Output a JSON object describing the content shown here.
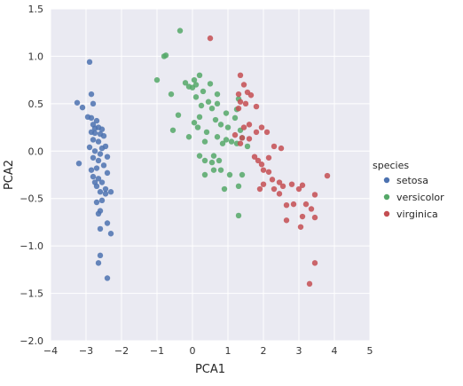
{
  "chart_data": {
    "type": "scatter",
    "title": "",
    "xlabel": "PCA1",
    "ylabel": "PCA2",
    "xlim": [
      -4,
      5
    ],
    "ylim": [
      -2.0,
      1.5
    ],
    "xticks": [
      -4,
      -3,
      -2,
      -1,
      0,
      1,
      2,
      3,
      4,
      5
    ],
    "xtick_labels": [
      "−4",
      "−3",
      "−2",
      "−1",
      "0",
      "1",
      "2",
      "3",
      "4",
      "5"
    ],
    "yticks": [
      -2.0,
      -1.5,
      -1.0,
      -0.5,
      0.0,
      0.5,
      1.0,
      1.5
    ],
    "ytick_labels": [
      "−2.0",
      "−1.5",
      "−1.0",
      "−0.5",
      "0.0",
      "0.5",
      "1.0",
      "1.5"
    ],
    "grid": true,
    "background": "#EAEAF2",
    "legend": {
      "title": "species",
      "placement": "right"
    },
    "series": [
      {
        "name": "setosa",
        "color": "#4C72B0",
        "points": [
          [
            -2.9,
            0.94
          ],
          [
            -3.25,
            0.51
          ],
          [
            -3.1,
            0.46
          ],
          [
            -2.85,
            0.6
          ],
          [
            -2.8,
            0.5
          ],
          [
            -2.95,
            0.36
          ],
          [
            -2.85,
            0.35
          ],
          [
            -2.7,
            0.32
          ],
          [
            -2.8,
            0.28
          ],
          [
            -2.75,
            0.24
          ],
          [
            -2.65,
            0.25
          ],
          [
            -2.55,
            0.23
          ],
          [
            -2.85,
            0.2
          ],
          [
            -2.75,
            0.19
          ],
          [
            -2.6,
            0.18
          ],
          [
            -2.5,
            0.16
          ],
          [
            -2.8,
            0.12
          ],
          [
            -2.65,
            0.1
          ],
          [
            -2.9,
            0.04
          ],
          [
            -2.55,
            0.03
          ],
          [
            -2.45,
            0.05
          ],
          [
            -2.75,
            0.0
          ],
          [
            -2.6,
            -0.03
          ],
          [
            -2.4,
            -0.06
          ],
          [
            -2.8,
            -0.07
          ],
          [
            -2.65,
            -0.1
          ],
          [
            -3.2,
            -0.13
          ],
          [
            -2.5,
            -0.15
          ],
          [
            -2.85,
            -0.2
          ],
          [
            -2.7,
            -0.18
          ],
          [
            -2.4,
            -0.23
          ],
          [
            -2.8,
            -0.27
          ],
          [
            -2.65,
            -0.29
          ],
          [
            -2.55,
            -0.33
          ],
          [
            -2.75,
            -0.33
          ],
          [
            -2.7,
            -0.37
          ],
          [
            -2.45,
            -0.4
          ],
          [
            -2.3,
            -0.43
          ],
          [
            -2.6,
            -0.43
          ],
          [
            -2.45,
            -0.45
          ],
          [
            -2.55,
            -0.52
          ],
          [
            -2.7,
            -0.54
          ],
          [
            -2.6,
            -0.63
          ],
          [
            -2.65,
            -0.66
          ],
          [
            -2.4,
            -0.76
          ],
          [
            -2.6,
            -0.82
          ],
          [
            -2.3,
            -0.87
          ],
          [
            -2.6,
            -1.1
          ],
          [
            -2.65,
            -1.18
          ],
          [
            -2.4,
            -1.34
          ]
        ]
      },
      {
        "name": "versicolor",
        "color": "#55A868",
        "points": [
          [
            -0.35,
            1.27
          ],
          [
            -0.8,
            1.0
          ],
          [
            -0.75,
            1.01
          ],
          [
            -1.0,
            0.75
          ],
          [
            -0.6,
            0.6
          ],
          [
            -0.2,
            0.72
          ],
          [
            0.1,
            0.7
          ],
          [
            0.0,
            0.67
          ],
          [
            -0.1,
            0.68
          ],
          [
            0.2,
            0.8
          ],
          [
            0.05,
            0.75
          ],
          [
            0.3,
            0.63
          ],
          [
            0.5,
            0.71
          ],
          [
            0.1,
            0.57
          ],
          [
            0.25,
            0.48
          ],
          [
            0.45,
            0.52
          ],
          [
            0.55,
            0.45
          ],
          [
            0.2,
            0.36
          ],
          [
            -0.4,
            0.38
          ],
          [
            0.7,
            0.6
          ],
          [
            0.7,
            0.5
          ],
          [
            0.65,
            0.33
          ],
          [
            0.95,
            0.4
          ],
          [
            0.8,
            0.28
          ],
          [
            1.25,
            0.44
          ],
          [
            1.3,
            0.55
          ],
          [
            1.2,
            0.35
          ],
          [
            1.35,
            0.22
          ],
          [
            -0.55,
            0.22
          ],
          [
            0.05,
            0.3
          ],
          [
            0.15,
            0.25
          ],
          [
            -0.1,
            0.15
          ],
          [
            0.35,
            0.1
          ],
          [
            0.4,
            0.2
          ],
          [
            0.7,
            0.15
          ],
          [
            1.0,
            0.25
          ],
          [
            0.95,
            0.12
          ],
          [
            0.6,
            -0.05
          ],
          [
            0.85,
            0.08
          ],
          [
            1.1,
            0.1
          ],
          [
            1.25,
            0.08
          ],
          [
            1.4,
            0.14
          ],
          [
            0.2,
            -0.05
          ],
          [
            0.35,
            -0.1
          ],
          [
            0.55,
            -0.12
          ],
          [
            0.75,
            -0.1
          ],
          [
            1.55,
            0.05
          ],
          [
            1.05,
            -0.25
          ],
          [
            1.4,
            -0.25
          ],
          [
            0.8,
            -0.2
          ],
          [
            0.6,
            -0.2
          ],
          [
            1.3,
            -0.37
          ],
          [
            0.9,
            -0.4
          ],
          [
            0.35,
            -0.25
          ],
          [
            1.3,
            -0.68
          ]
        ]
      },
      {
        "name": "virginica",
        "color": "#C44E52",
        "points": [
          [
            0.5,
            1.19
          ],
          [
            1.35,
            0.8
          ],
          [
            1.45,
            0.7
          ],
          [
            1.55,
            0.62
          ],
          [
            1.3,
            0.6
          ],
          [
            1.65,
            0.59
          ],
          [
            1.35,
            0.52
          ],
          [
            1.5,
            0.5
          ],
          [
            1.3,
            0.45
          ],
          [
            1.8,
            0.47
          ],
          [
            1.95,
            0.25
          ],
          [
            1.8,
            0.2
          ],
          [
            2.1,
            0.2
          ],
          [
            1.6,
            0.28
          ],
          [
            1.45,
            0.25
          ],
          [
            1.2,
            0.17
          ],
          [
            1.4,
            0.14
          ],
          [
            1.6,
            0.13
          ],
          [
            1.35,
            0.08
          ],
          [
            2.3,
            0.05
          ],
          [
            2.5,
            0.03
          ],
          [
            1.75,
            -0.06
          ],
          [
            1.85,
            -0.1
          ],
          [
            1.95,
            -0.14
          ],
          [
            2.15,
            -0.07
          ],
          [
            2.0,
            -0.2
          ],
          [
            2.15,
            -0.22
          ],
          [
            2.25,
            -0.3
          ],
          [
            2.0,
            -0.35
          ],
          [
            1.9,
            -0.4
          ],
          [
            2.3,
            -0.4
          ],
          [
            2.45,
            -0.33
          ],
          [
            2.55,
            -0.37
          ],
          [
            2.8,
            -0.35
          ],
          [
            3.1,
            -0.36
          ],
          [
            3.0,
            -0.4
          ],
          [
            2.45,
            -0.45
          ],
          [
            2.65,
            -0.57
          ],
          [
            2.85,
            -0.56
          ],
          [
            3.45,
            -0.46
          ],
          [
            3.8,
            -0.26
          ],
          [
            2.65,
            -0.73
          ],
          [
            3.2,
            -0.56
          ],
          [
            3.35,
            -0.61
          ],
          [
            3.1,
            -0.69
          ],
          [
            3.45,
            -0.7
          ],
          [
            3.05,
            -0.8
          ],
          [
            3.45,
            -1.18
          ],
          [
            3.3,
            -1.4
          ]
        ]
      }
    ]
  }
}
